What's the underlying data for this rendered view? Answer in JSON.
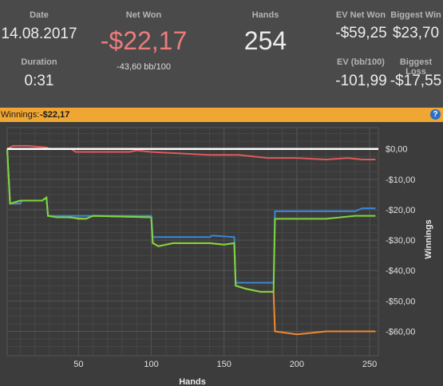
{
  "stats": {
    "date": {
      "label": "Date",
      "value": "14.08.2017"
    },
    "duration": {
      "label": "Duration",
      "value": "0:31"
    },
    "net_won": {
      "label": "Net Won",
      "value": "-$22,17",
      "sub": "-43,60 bb/100",
      "color": "#ef7b7b"
    },
    "hands": {
      "label": "Hands",
      "value": "254"
    },
    "ev_net_won": {
      "label": "EV Net Won",
      "value": "-$59,25"
    },
    "biggest_win": {
      "label": "Biggest Win",
      "value": "$23,70"
    },
    "ev_bb100": {
      "label": "EV (bb/100)",
      "value": "-101,99"
    },
    "biggest_loss": {
      "label": "Biggest Loss",
      "value": "-$17,55"
    }
  },
  "banner": {
    "label": "Winnings:",
    "value": "-$22,17",
    "help_icon": "?"
  },
  "chart_data": {
    "type": "line",
    "xlabel": "Hands",
    "ylabel": "Winnings",
    "xlim": [
      1,
      256
    ],
    "ylim": [
      -68,
      7
    ],
    "x_ticks": [
      50,
      100,
      150,
      200,
      250
    ],
    "y_ticks": [
      0,
      -10,
      -20,
      -30,
      -40,
      -50,
      -60
    ],
    "y_tick_labels": [
      "$0,00",
      "-$10,00",
      "-$20,00",
      "-$30,00",
      "-$40,00",
      "-$50,00",
      "-$60,00"
    ],
    "grid": true,
    "series": [
      {
        "color": "#e05a5a",
        "points": [
          [
            1,
            0
          ],
          [
            5,
            1
          ],
          [
            15,
            1
          ],
          [
            28,
            0.5
          ],
          [
            30,
            0
          ],
          [
            45,
            0
          ],
          [
            48,
            -1
          ],
          [
            55,
            -1
          ],
          [
            60,
            -1
          ],
          [
            70,
            -1
          ],
          [
            85,
            -1
          ],
          [
            90,
            -0.5
          ],
          [
            100,
            -1
          ],
          [
            120,
            -1.5
          ],
          [
            140,
            -2
          ],
          [
            160,
            -2
          ],
          [
            180,
            -3
          ],
          [
            200,
            -3
          ],
          [
            220,
            -3.5
          ],
          [
            235,
            -3
          ],
          [
            245,
            -3.5
          ],
          [
            254,
            -3.5
          ]
        ]
      },
      {
        "color": "#f08a30",
        "points": [
          [
            1,
            0
          ],
          [
            3,
            -18
          ],
          [
            10,
            -18
          ],
          [
            11,
            -17
          ],
          [
            25,
            -17
          ],
          [
            28,
            -16
          ],
          [
            29,
            -22
          ],
          [
            55,
            -23
          ],
          [
            60,
            -22
          ],
          [
            100,
            -22.5
          ],
          [
            101,
            -31
          ],
          [
            105,
            -32
          ],
          [
            115,
            -31
          ],
          [
            140,
            -31
          ],
          [
            150,
            -31.5
          ],
          [
            157,
            -31
          ],
          [
            158,
            -45
          ],
          [
            165,
            -46
          ],
          [
            175,
            -47
          ],
          [
            184,
            -47
          ],
          [
            185,
            -60
          ],
          [
            200,
            -61
          ],
          [
            220,
            -60
          ],
          [
            240,
            -60
          ],
          [
            254,
            -60
          ]
        ]
      },
      {
        "color": "#3a88d8",
        "points": [
          [
            1,
            0
          ],
          [
            3,
            -18
          ],
          [
            10,
            -18
          ],
          [
            11,
            -17
          ],
          [
            25,
            -17
          ],
          [
            28,
            -16
          ],
          [
            29,
            -22
          ],
          [
            55,
            -22
          ],
          [
            100,
            -22
          ],
          [
            101,
            -29
          ],
          [
            140,
            -29
          ],
          [
            142,
            -28.5
          ],
          [
            157,
            -29
          ],
          [
            158,
            -44
          ],
          [
            184,
            -44
          ],
          [
            185,
            -20.5
          ],
          [
            240,
            -20.5
          ],
          [
            245,
            -19.5
          ],
          [
            254,
            -19.5
          ]
        ]
      },
      {
        "color": "#7ed63a",
        "points": [
          [
            1,
            0
          ],
          [
            3,
            -18
          ],
          [
            10,
            -17
          ],
          [
            25,
            -17
          ],
          [
            28,
            -16
          ],
          [
            29,
            -22
          ],
          [
            35,
            -22.5
          ],
          [
            45,
            -22.5
          ],
          [
            50,
            -23
          ],
          [
            55,
            -23
          ],
          [
            60,
            -22
          ],
          [
            100,
            -22.5
          ],
          [
            101,
            -31
          ],
          [
            105,
            -32
          ],
          [
            115,
            -31
          ],
          [
            140,
            -31
          ],
          [
            150,
            -31.5
          ],
          [
            157,
            -31
          ],
          [
            158,
            -45
          ],
          [
            165,
            -46
          ],
          [
            175,
            -47
          ],
          [
            184,
            -47
          ],
          [
            185,
            -23
          ],
          [
            200,
            -23
          ],
          [
            220,
            -23
          ],
          [
            230,
            -22.5
          ],
          [
            240,
            -22
          ],
          [
            254,
            -22
          ]
        ]
      }
    ]
  }
}
